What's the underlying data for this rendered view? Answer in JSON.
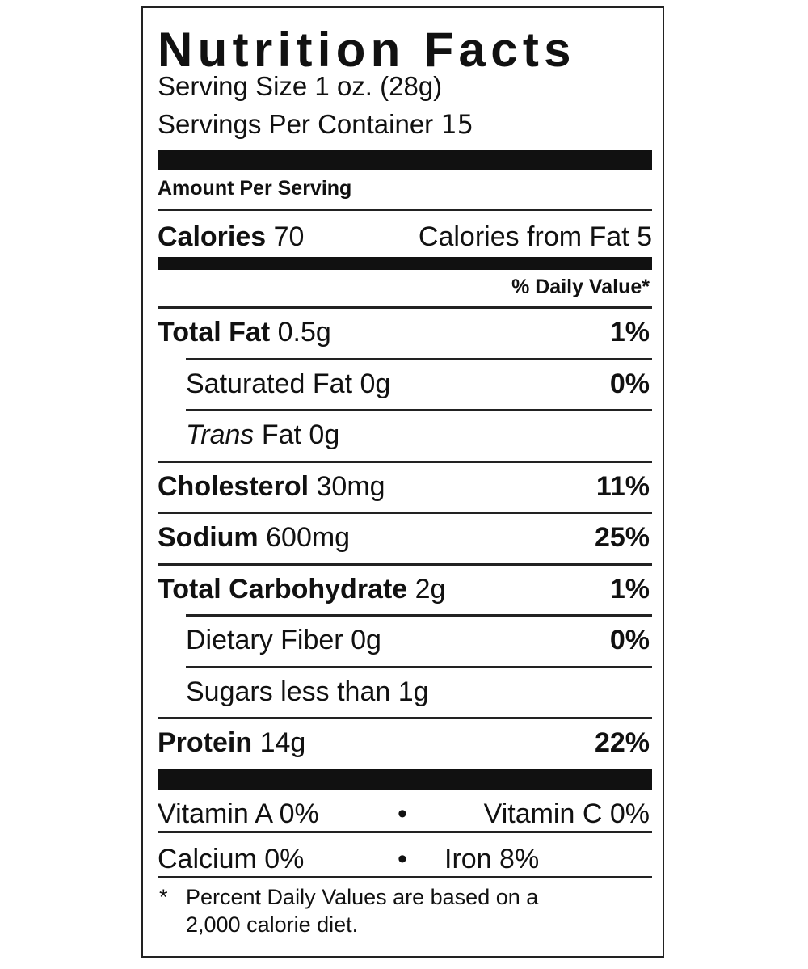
{
  "title": "Nutrition Facts",
  "serving_size": "Serving Size 1 oz. (28g)",
  "servings_per_container": {
    "label": "Servings Per Container",
    "value": "15"
  },
  "amount_per_serving": "Amount Per Serving",
  "calories": {
    "label": "Calories",
    "value": "70",
    "fat_label": "Calories from Fat",
    "fat_value": "5"
  },
  "daily_value_header": "% Daily Value*",
  "nutrients": [
    {
      "name": "Total Fat",
      "amount": "0.5g",
      "dv": "1%"
    },
    {
      "name": "Saturated Fat",
      "amount": "0g",
      "dv": "0%",
      "indent": true
    },
    {
      "name": "Trans",
      "amount": "Fat 0g",
      "indent": true,
      "italic": true
    },
    {
      "name": "Cholesterol",
      "amount": "30mg",
      "dv": "11%"
    },
    {
      "name": "Sodium",
      "amount": "600mg",
      "dv": "25%"
    },
    {
      "name": "Total Carbohydrate",
      "amount": "2g",
      "dv": "1%"
    },
    {
      "name": "Dietary Fiber",
      "amount": "0g",
      "dv": "0%",
      "indent": true
    },
    {
      "name": "Sugars less than",
      "amount": "1g",
      "indent": true
    },
    {
      "name": "Protein",
      "amount": "14g",
      "dv": "22%"
    }
  ],
  "vitamins": {
    "separator": "•",
    "rows": [
      [
        "Vitamin A 0%",
        "Vitamin C 0%"
      ],
      [
        "Calcium 0%",
        "Iron 8%"
      ]
    ]
  },
  "footnote": {
    "marker": "*",
    "lines": [
      "Percent Daily Values are based on a",
      "2,000 calorie diet."
    ]
  }
}
